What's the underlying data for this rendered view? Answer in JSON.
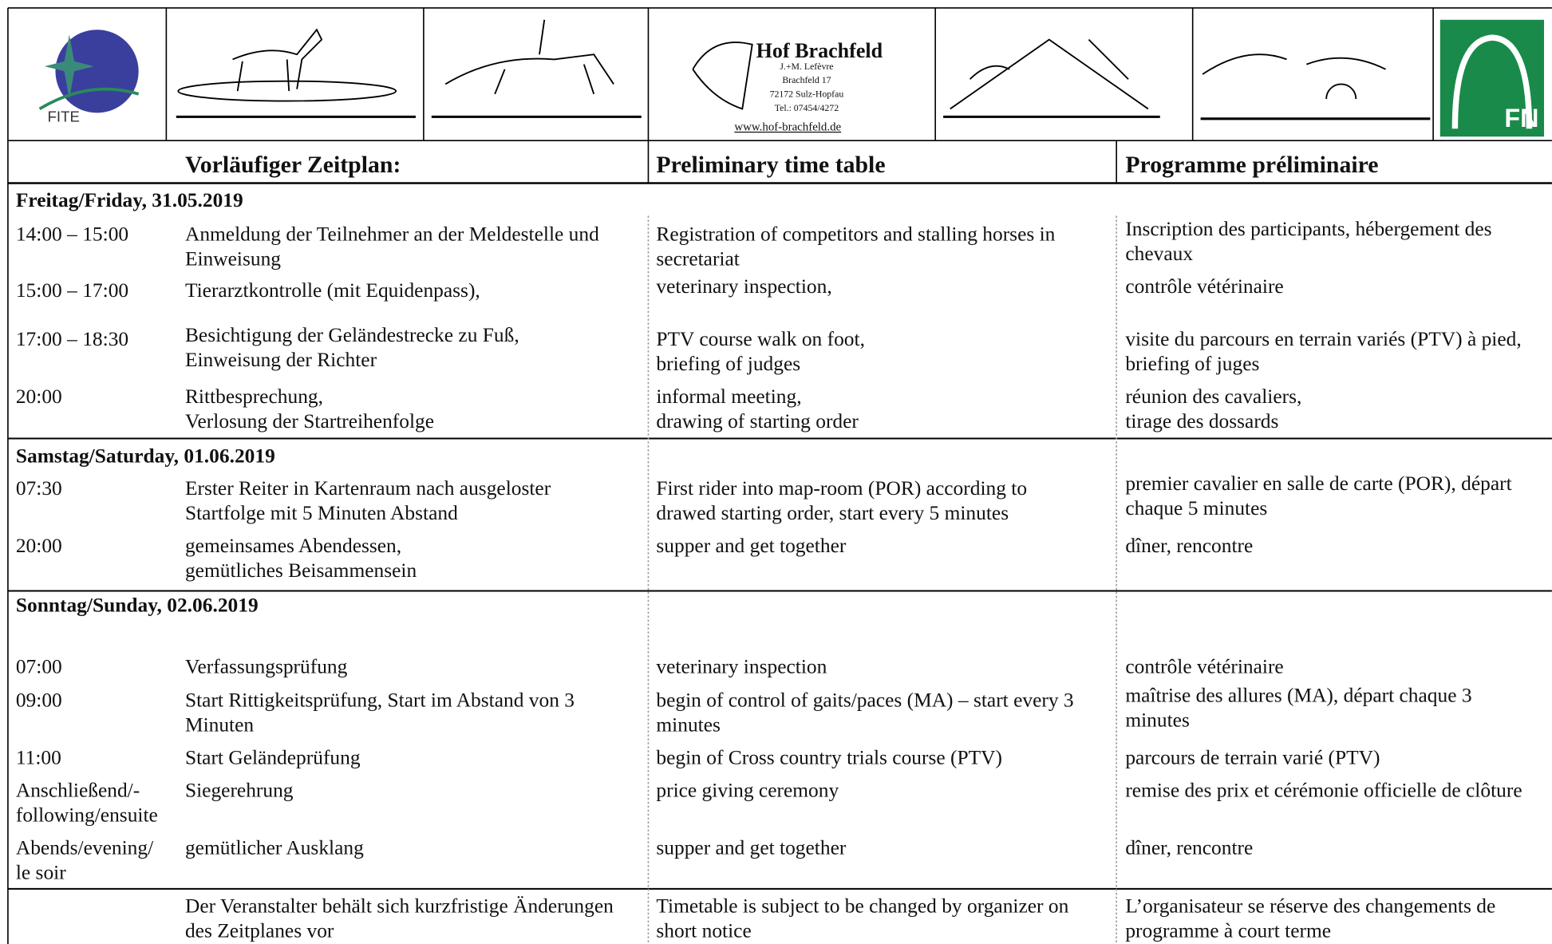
{
  "header": {
    "fite": "FITE",
    "hof": {
      "name": "Hof Brachfeld",
      "lines": [
        "J.+M. Lefèvre",
        "Brachfeld 17",
        "72172 Sulz-Hopfau",
        "Tel.: 07454/4272"
      ],
      "url": "www.hof-brachfeld.de"
    },
    "fn": "FN"
  },
  "table": {
    "columns": [
      "Vorläufiger Zeitplan:",
      "Preliminary time table",
      "Programme préliminaire"
    ],
    "days": [
      {
        "title": "Freitag/Friday, 31.05.2019",
        "rows": [
          {
            "time": "14:00 – 15:00",
            "de": "Anmeldung der Teilnehmer an der Meldestelle und\nEinweisung",
            "en": "Registration of competitors and stalling horses in\nsecretariat",
            "fr": "Inscription des participants, hébergement des\nchevaux"
          },
          {
            "time": "15:00 – 17:00",
            "de": "Tierarztkontrolle (mit Equidenpass),",
            "en": "veterinary inspection,",
            "fr": "contrôle vétérinaire"
          },
          {
            "time": "17:00 – 18:30",
            "de": "Besichtigung der Geländestrecke zu Fuß,\nEinweisung der Richter",
            "en": "PTV course walk on foot,\nbriefing of judges",
            "fr": "visite du parcours en terrain variés (PTV) à pied,\nbriefing of juges"
          },
          {
            "time": "20:00",
            "de": "Rittbesprechung,\nVerlosung der Startreihenfolge",
            "en": "informal meeting,\ndrawing of starting order",
            "fr": "réunion des cavaliers,\ntirage des dossards"
          }
        ]
      },
      {
        "title": "Samstag/Saturday, 01.06.2019",
        "rows": [
          {
            "time": "07:30",
            "de": "Erster Reiter in Kartenraum nach ausgeloster\nStartfolge mit 5 Minuten Abstand",
            "en": "First rider into map-room (POR) according to\ndrawed starting order, start every 5 minutes",
            "fr": "premier cavalier en salle de carte (POR), départ\nchaque 5 minutes"
          },
          {
            "time": "20:00",
            "de": "gemeinsames Abendessen,\ngemütliches Beisammensein",
            "en": "supper and get together",
            "fr": "dîner, rencontre"
          }
        ]
      },
      {
        "title": "Sonntag/Sunday, 02.06.2019",
        "rows": [
          {
            "time": "07:00",
            "de": "Verfassungsprüfung",
            "en": "veterinary inspection",
            "fr": "contrôle vétérinaire"
          },
          {
            "time": "09:00",
            "de": "Start Rittigkeitsprüfung, Start im Abstand von 3\nMinuten",
            "en": "begin of control of gaits/paces (MA) – start every 3\nminutes",
            "fr": "maîtrise des allures (MA), départ chaque 3\nminutes"
          },
          {
            "time": "11:00",
            "de": "Start Geländeprüfung",
            "en": "begin of Cross country trials course (PTV)",
            "fr": "parcours de terrain varié (PTV)"
          },
          {
            "time": "Anschließend/-\nfollowing/ensuite",
            "de": "Siegerehrung",
            "en": "price giving ceremony",
            "fr": "remise des prix et cérémonie officielle de clôture"
          },
          {
            "time": "Abends/evening/\nle soir",
            "de": "gemütlicher Ausklang",
            "en": "supper and get together",
            "fr": "dîner, rencontre"
          }
        ]
      }
    ],
    "footer": {
      "de": "Der Veranstalter behält sich kurzfristige Änderungen\ndes Zeitplanes vor",
      "en": "Timetable is subject to be changed by organizer on\nshort notice",
      "fr": "L’organisateur se réserve des changements de\nprogramme à court terme"
    }
  }
}
